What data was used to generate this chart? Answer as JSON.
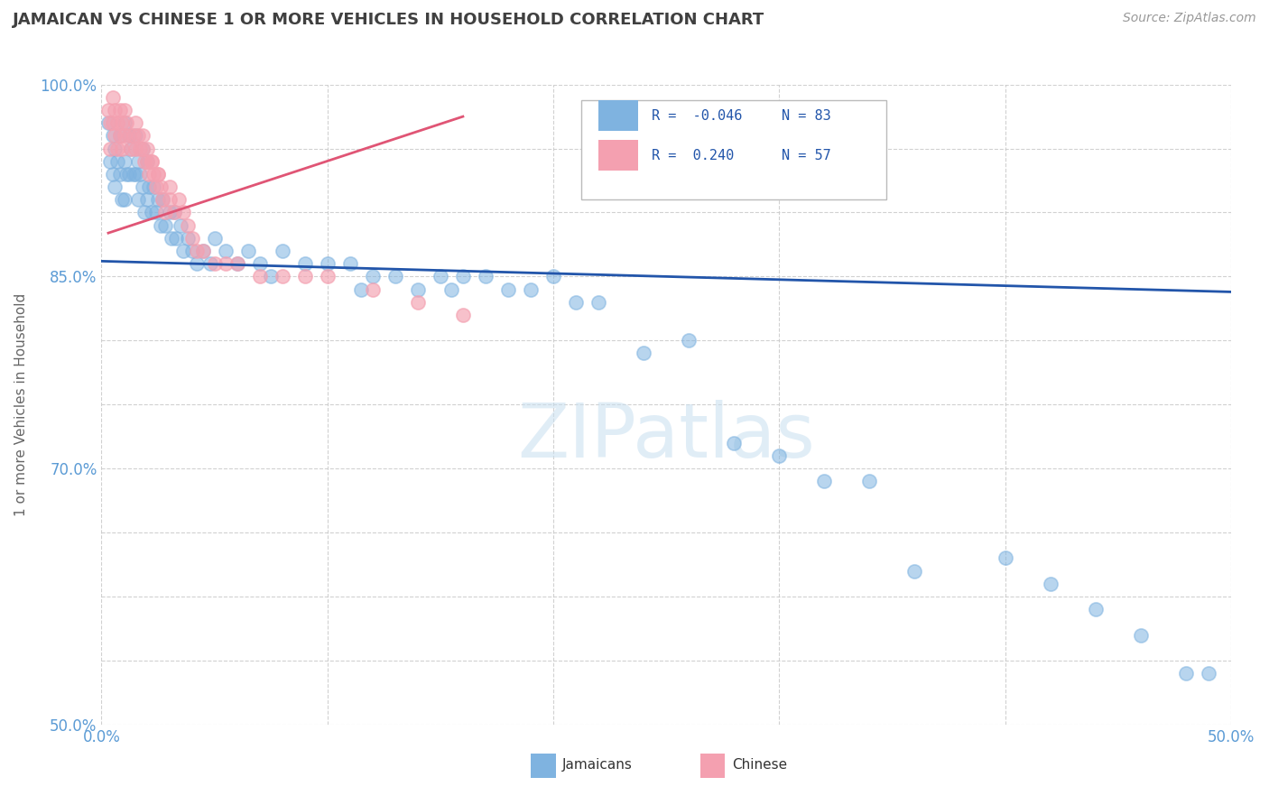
{
  "title": "JAMAICAN VS CHINESE 1 OR MORE VEHICLES IN HOUSEHOLD CORRELATION CHART",
  "source": "Source: ZipAtlas.com",
  "ylabel": "1 or more Vehicles in Household",
  "xlim": [
    0.0,
    0.5
  ],
  "ylim": [
    0.5,
    1.0
  ],
  "xtick_positions": [
    0.0,
    0.1,
    0.2,
    0.3,
    0.4,
    0.5
  ],
  "xtick_labels": [
    "0.0%",
    "",
    "",
    "",
    "",
    "50.0%"
  ],
  "ytick_positions": [
    0.5,
    0.55,
    0.6,
    0.65,
    0.7,
    0.75,
    0.8,
    0.85,
    0.9,
    0.95,
    1.0
  ],
  "ytick_labels": [
    "50.0%",
    "",
    "",
    "",
    "70.0%",
    "",
    "",
    "85.0%",
    "",
    "",
    "100.0%"
  ],
  "legend_labels": [
    "Jamaicans",
    "Chinese"
  ],
  "R_jamaican": -0.046,
  "N_jamaican": 83,
  "R_chinese": 0.24,
  "N_chinese": 57,
  "watermark": "ZIPatlas",
  "jamaican_color": "#7FB3E0",
  "chinese_color": "#F4A0B0",
  "jamaican_line_color": "#2255AA",
  "chinese_line_color": "#E05575",
  "background_color": "#FFFFFF",
  "grid_color": "#CCCCCC",
  "title_color": "#404040",
  "axis_label_color": "#666666",
  "tick_label_color": "#5B9BD5",
  "legend_text_color": "#2255AA",
  "jamaican_x": [
    0.003,
    0.004,
    0.005,
    0.005,
    0.006,
    0.006,
    0.007,
    0.008,
    0.008,
    0.009,
    0.01,
    0.01,
    0.01,
    0.011,
    0.012,
    0.012,
    0.013,
    0.014,
    0.015,
    0.015,
    0.016,
    0.016,
    0.017,
    0.018,
    0.018,
    0.019,
    0.02,
    0.02,
    0.021,
    0.022,
    0.023,
    0.024,
    0.025,
    0.026,
    0.027,
    0.028,
    0.03,
    0.031,
    0.032,
    0.033,
    0.035,
    0.036,
    0.038,
    0.04,
    0.042,
    0.045,
    0.048,
    0.05,
    0.055,
    0.06,
    0.065,
    0.07,
    0.075,
    0.08,
    0.09,
    0.1,
    0.11,
    0.115,
    0.12,
    0.13,
    0.14,
    0.15,
    0.155,
    0.16,
    0.17,
    0.18,
    0.19,
    0.2,
    0.21,
    0.22,
    0.24,
    0.26,
    0.28,
    0.3,
    0.32,
    0.34,
    0.36,
    0.4,
    0.42,
    0.44,
    0.46,
    0.48,
    0.49
  ],
  "jamaican_y": [
    0.97,
    0.94,
    0.96,
    0.93,
    0.95,
    0.92,
    0.94,
    0.96,
    0.93,
    0.91,
    0.97,
    0.94,
    0.91,
    0.93,
    0.96,
    0.93,
    0.95,
    0.93,
    0.96,
    0.93,
    0.94,
    0.91,
    0.93,
    0.95,
    0.92,
    0.9,
    0.94,
    0.91,
    0.92,
    0.9,
    0.92,
    0.9,
    0.91,
    0.89,
    0.91,
    0.89,
    0.9,
    0.88,
    0.9,
    0.88,
    0.89,
    0.87,
    0.88,
    0.87,
    0.86,
    0.87,
    0.86,
    0.88,
    0.87,
    0.86,
    0.87,
    0.86,
    0.85,
    0.87,
    0.86,
    0.86,
    0.86,
    0.84,
    0.85,
    0.85,
    0.84,
    0.85,
    0.84,
    0.85,
    0.85,
    0.84,
    0.84,
    0.85,
    0.83,
    0.83,
    0.79,
    0.8,
    0.72,
    0.71,
    0.69,
    0.69,
    0.62,
    0.63,
    0.61,
    0.59,
    0.57,
    0.54,
    0.54
  ],
  "chinese_x": [
    0.003,
    0.004,
    0.004,
    0.005,
    0.005,
    0.006,
    0.006,
    0.007,
    0.007,
    0.008,
    0.008,
    0.009,
    0.009,
    0.01,
    0.01,
    0.011,
    0.012,
    0.013,
    0.014,
    0.015,
    0.015,
    0.016,
    0.017,
    0.018,
    0.019,
    0.02,
    0.021,
    0.022,
    0.023,
    0.024,
    0.025,
    0.026,
    0.027,
    0.028,
    0.03,
    0.032,
    0.034,
    0.036,
    0.038,
    0.04,
    0.042,
    0.045,
    0.05,
    0.055,
    0.06,
    0.07,
    0.08,
    0.09,
    0.1,
    0.12,
    0.14,
    0.16,
    0.02,
    0.025,
    0.03,
    0.018,
    0.022
  ],
  "chinese_y": [
    0.98,
    0.97,
    0.95,
    0.99,
    0.97,
    0.98,
    0.96,
    0.97,
    0.95,
    0.98,
    0.96,
    0.97,
    0.95,
    0.98,
    0.96,
    0.97,
    0.96,
    0.95,
    0.96,
    0.97,
    0.95,
    0.96,
    0.95,
    0.96,
    0.94,
    0.95,
    0.93,
    0.94,
    0.93,
    0.92,
    0.93,
    0.92,
    0.91,
    0.9,
    0.91,
    0.9,
    0.91,
    0.9,
    0.89,
    0.88,
    0.87,
    0.87,
    0.86,
    0.86,
    0.86,
    0.85,
    0.85,
    0.85,
    0.85,
    0.84,
    0.83,
    0.82,
    0.94,
    0.93,
    0.92,
    0.95,
    0.94
  ],
  "jamaican_line_x": [
    0.0,
    0.5
  ],
  "jamaican_line_y": [
    0.862,
    0.838
  ],
  "chinese_line_x": [
    0.003,
    0.16
  ],
  "chinese_line_y": [
    0.884,
    0.975
  ]
}
